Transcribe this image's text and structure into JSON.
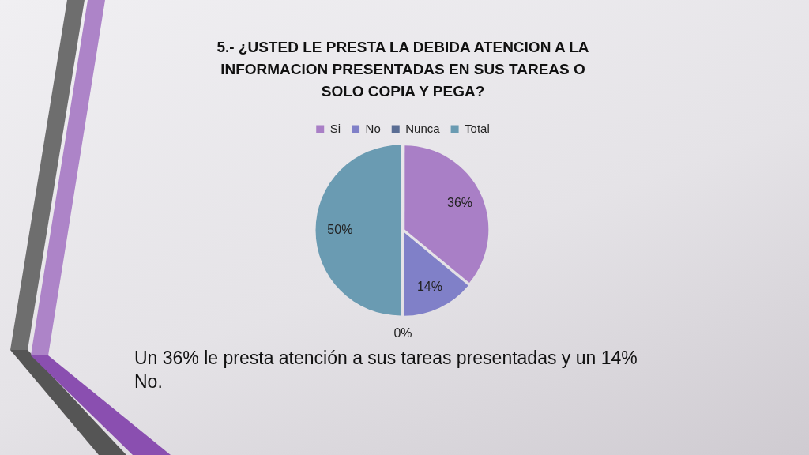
{
  "chart_data": {
    "type": "pie",
    "title": "5.- ¿USTED LE PRESTA LA DEBIDA ATENCION A LA INFORMACION PRESENTADAS EN SUS TAREAS O SOLO COPIA Y PEGA?",
    "categories": [
      "Si",
      "No",
      "Nunca",
      "Total"
    ],
    "values": [
      36,
      14,
      0,
      50
    ],
    "colors": [
      "#a97fc6",
      "#8080c8",
      "#5a6d94",
      "#6a9bb2"
    ],
    "value_labels": [
      "36%",
      "14%",
      "0%",
      "50%"
    ],
    "legend": "top",
    "annotations": [
      "Un 36% le presta atención a sus tareas presentadas y un 14% No."
    ]
  }
}
